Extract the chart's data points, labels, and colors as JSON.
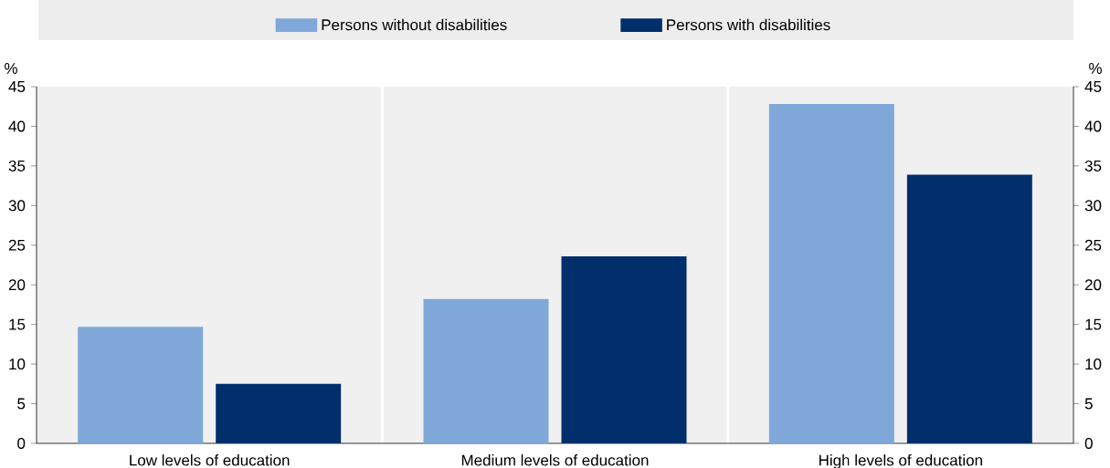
{
  "chart_data": {
    "type": "bar",
    "categories": [
      "Low levels of education",
      "Medium levels of education",
      "High levels of education"
    ],
    "series": [
      {
        "name": "Persons without disabilities",
        "color": "#7fa8d9",
        "values": [
          14.7,
          18.2,
          42.8
        ]
      },
      {
        "name": "Persons with disabilities",
        "color": "#002f6c",
        "values": [
          7.5,
          23.6,
          33.9
        ]
      }
    ],
    "ylabel": "%",
    "y2label": "%",
    "ylim": [
      0,
      45
    ],
    "yticks": [
      0,
      5,
      10,
      15,
      20,
      25,
      30,
      35,
      40,
      45
    ],
    "y2lim": [
      0,
      45
    ],
    "y2ticks": [
      0,
      5,
      10,
      15,
      20,
      25,
      30,
      35,
      40,
      45
    ],
    "grid": "x",
    "legend": "top"
  }
}
